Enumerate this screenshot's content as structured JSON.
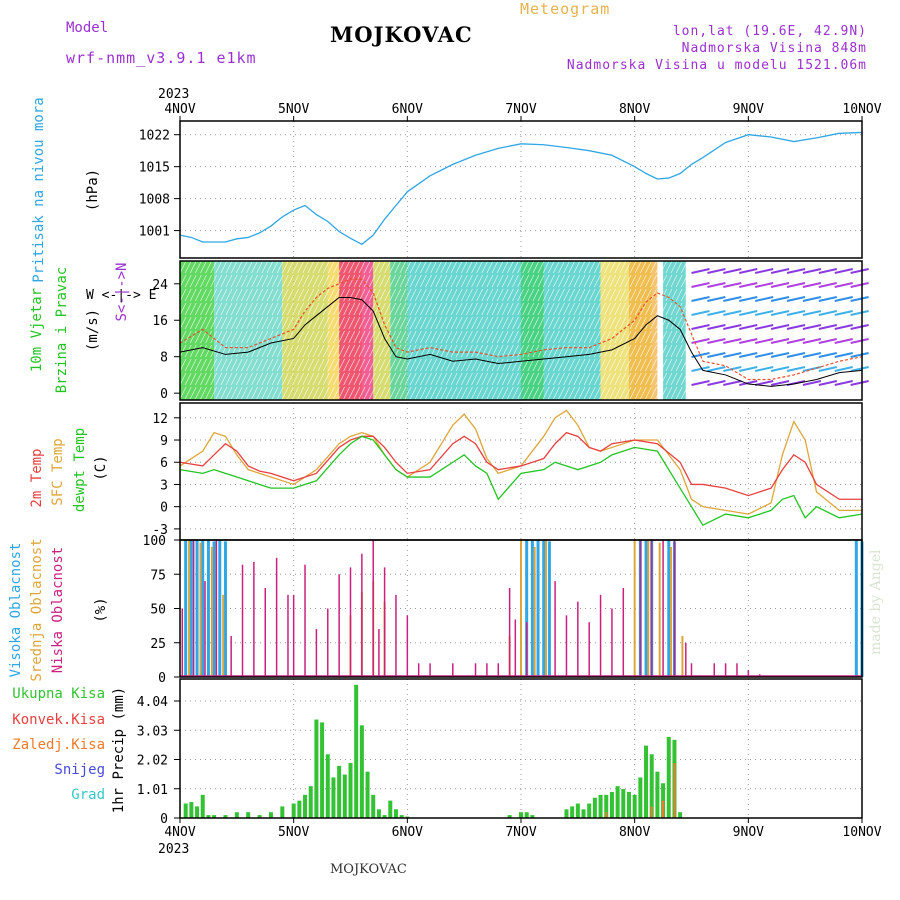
{
  "header": {
    "title": "MOJKOVAC",
    "model_label": "Model",
    "model_name": "wrf-nmm_v3.9.1 e1km",
    "meteogram": "Meteogram",
    "lonlat": "lon,lat (19.6E, 42.9N)",
    "visina": "Nadmorska Visina 848m",
    "visina_model": "Nadmorska Visina u modelu 1521.06m",
    "year": "2023",
    "footer": "MOJKOVAC",
    "made_by": "made by Angel"
  },
  "colors": {
    "pressure": "#2fa6e6",
    "wind_label": "#22c422",
    "temp2m": "#e84040",
    "sfc": "#dea63a",
    "dew": "#22c422",
    "visoka": "#2fa6e6",
    "srednja": "#dea63a",
    "niska": "#cc2080",
    "precip_total": "#33c233",
    "precip_konv": "#e84040",
    "precip_zaledj": "#f07a2a",
    "snijeg": "#4a4ad8",
    "grad": "#36c8c8",
    "violet": "#9b30d0"
  },
  "axis_labels": {
    "pressure": [
      "Pritisak na nivou mora",
      "(hPa)"
    ],
    "wind": [
      "10m Vjetar",
      "Brzina i Pravac",
      "(m/s)"
    ],
    "wind_compass": "W <-|-> E",
    "wind_compass2": "S<-|->N",
    "temp": [
      "2m Temp",
      "SFC Temp",
      "dewpt Temp",
      "(C)"
    ],
    "cloud": [
      "Visoka Oblacnost",
      "Srednja Oblacnost",
      "Niska Oblacnost",
      "(%)"
    ],
    "precip": [
      "Ukupna Kisa",
      "Konvek.Kisa",
      "Zaledj.Kisa",
      "Snijeg",
      "Grad",
      "1hr Precip (mm)"
    ]
  },
  "chart_data": [
    {
      "type": "line",
      "name": "pressure",
      "x_days": [
        "4NOV",
        "5NOV",
        "6NOV",
        "7NOV",
        "8NOV",
        "9NOV",
        "10NOV"
      ],
      "ylabel": "(hPa)",
      "yticks": [
        "1001",
        "1008",
        "1015",
        "1022"
      ],
      "ylim": [
        995,
        1025
      ],
      "x": [
        0,
        0.1,
        0.2,
        0.3,
        0.4,
        0.5,
        0.6,
        0.7,
        0.8,
        0.9,
        1.0,
        1.1,
        1.2,
        1.3,
        1.4,
        1.5,
        1.6,
        1.7,
        1.8,
        1.9,
        2.0,
        2.2,
        2.4,
        2.6,
        2.8,
        3.0,
        3.2,
        3.4,
        3.6,
        3.8,
        4.0,
        4.1,
        4.2,
        4.3,
        4.4,
        4.5,
        4.6,
        4.8,
        5.0,
        5.2,
        5.4,
        5.6,
        5.8,
        6.0
      ],
      "values": [
        1000,
        999.5,
        998.5,
        998.5,
        998.5,
        999.2,
        999.5,
        1000.5,
        1002,
        1004,
        1005.5,
        1006.5,
        1004.5,
        1003,
        1000.8,
        999.3,
        998,
        1000,
        1003.5,
        1006.5,
        1009.5,
        1013,
        1015.5,
        1017.5,
        1019,
        1020,
        1019.8,
        1019.2,
        1018.5,
        1017.5,
        1015,
        1013.5,
        1012.3,
        1012.5,
        1013.5,
        1015.5,
        1017,
        1020.3,
        1022,
        1021.5,
        1020.5,
        1021.3,
        1022.3,
        1022.5
      ]
    },
    {
      "type": "line",
      "name": "wind",
      "ylabel": "(m/s)",
      "yticks": [
        "0",
        "8",
        "16",
        "24"
      ],
      "ylim": [
        -1.5,
        29
      ],
      "x": [
        0,
        0.2,
        0.4,
        0.6,
        0.8,
        1.0,
        1.1,
        1.2,
        1.3,
        1.4,
        1.5,
        1.6,
        1.7,
        1.8,
        1.9,
        2.0,
        2.2,
        2.4,
        2.6,
        2.8,
        3.0,
        3.2,
        3.4,
        3.6,
        3.8,
        4.0,
        4.1,
        4.2,
        4.3,
        4.4,
        4.5,
        4.6,
        4.8,
        5.0,
        5.2,
        5.4,
        5.6,
        5.8,
        6.0
      ],
      "speed": [
        9,
        10,
        8.5,
        9,
        11,
        12,
        15,
        17,
        19,
        21,
        21,
        20.5,
        18,
        12,
        8,
        7.5,
        8.5,
        7,
        7.5,
        6.5,
        7,
        7.5,
        8,
        8.5,
        9.5,
        12,
        15,
        17,
        16,
        14,
        9,
        5,
        4,
        2,
        1.5,
        2,
        3,
        4.5,
        5
      ],
      "gust": [
        11,
        14,
        10,
        10,
        12,
        14,
        18,
        21,
        23,
        24,
        25,
        25,
        22,
        15,
        10,
        9,
        10,
        9,
        9,
        8,
        8.5,
        9.5,
        10,
        10,
        12,
        16,
        20,
        22,
        21,
        19,
        13,
        7,
        6,
        3,
        3,
        4,
        5.5,
        7,
        8
      ]
    },
    {
      "type": "line",
      "name": "temperature",
      "ylabel": "(C)",
      "yticks": [
        "-3",
        "0",
        "3",
        "6",
        "9",
        "12"
      ],
      "ylim": [
        -4.5,
        14
      ],
      "x": [
        0,
        0.2,
        0.3,
        0.4,
        0.5,
        0.6,
        0.7,
        0.8,
        1.0,
        1.2,
        1.4,
        1.5,
        1.6,
        1.7,
        1.8,
        1.9,
        2.0,
        2.2,
        2.4,
        2.5,
        2.6,
        2.7,
        2.8,
        3.0,
        3.2,
        3.3,
        3.4,
        3.5,
        3.6,
        3.7,
        3.8,
        4.0,
        4.2,
        4.4,
        4.5,
        4.6,
        4.8,
        5.0,
        5.2,
        5.3,
        5.4,
        5.5,
        5.6,
        5.8,
        6.0
      ],
      "series": [
        {
          "name": "2m Temp",
          "values": [
            6,
            5.5,
            7,
            8.5,
            7.5,
            5.5,
            4.8,
            4.5,
            3.5,
            4.5,
            8,
            9,
            9.5,
            9.5,
            8,
            6,
            4.5,
            5,
            8.5,
            9.5,
            8.5,
            6,
            5,
            5.5,
            6.5,
            8.5,
            10,
            9.5,
            8,
            7.5,
            8.5,
            9,
            8.5,
            6,
            3,
            3,
            2.5,
            1.5,
            2.5,
            5,
            7,
            6,
            3,
            1,
            1
          ]
        },
        {
          "name": "SFC Temp",
          "values": [
            5.5,
            7.5,
            10,
            9.5,
            7,
            5,
            4.5,
            4,
            3,
            5,
            8.5,
            9.5,
            10,
            9.5,
            7,
            5,
            4,
            6,
            11,
            12.5,
            10.5,
            6.5,
            4.5,
            5.5,
            9.5,
            12,
            13,
            11,
            8,
            7.5,
            8,
            9,
            9,
            5,
            1,
            0,
            -0.5,
            -1,
            0.5,
            7,
            11.5,
            9,
            2,
            -0.5,
            -0.5
          ]
        },
        {
          "name": "dewpt Temp",
          "values": [
            5,
            4.5,
            5,
            4.5,
            4,
            3.5,
            3,
            2.5,
            2.5,
            3.5,
            7,
            8.5,
            9.5,
            9,
            7,
            5,
            4,
            4,
            6,
            7,
            5.5,
            4.5,
            1,
            4.5,
            5,
            6,
            5.5,
            5,
            5.5,
            6,
            7,
            8,
            7.5,
            2.5,
            0,
            -2.5,
            -1,
            -1.5,
            -0.5,
            1,
            1.5,
            -1.5,
            0,
            -1.5,
            -1
          ]
        }
      ]
    },
    {
      "type": "bar",
      "name": "cloud",
      "ylabel": "(%)",
      "yticks": [
        "0",
        "25",
        "50",
        "75",
        "100"
      ],
      "ylim": [
        0,
        100
      ],
      "series": [
        {
          "name": "Visoka Oblacnost",
          "x": [
            0.05,
            0.1,
            0.15,
            0.2,
            0.25,
            0.3,
            0.35,
            0.4,
            3.05,
            3.1,
            3.15,
            3.2,
            3.25,
            4.05,
            4.1,
            4.15,
            4.3,
            4.35,
            5.95,
            6.0
          ],
          "values": [
            100,
            100,
            100,
            100,
            100,
            99,
            100,
            99,
            100,
            100,
            100,
            100,
            99,
            100,
            100,
            100,
            100,
            99,
            100,
            99
          ]
        },
        {
          "name": "Srednja Oblacnost",
          "x": [
            0.08,
            0.18,
            0.28,
            0.38,
            1.5,
            1.6,
            1.7,
            1.8,
            2.9,
            3.0,
            3.12,
            3.22,
            4.0,
            4.12,
            4.22,
            4.32,
            4.42
          ],
          "values": [
            100,
            98,
            95,
            60,
            45,
            62,
            70,
            55,
            30,
            100,
            95,
            100,
            100,
            100,
            98,
            95,
            30
          ]
        },
        {
          "name": "Niska Oblacnost",
          "x": [
            0.02,
            0.12,
            0.22,
            0.32,
            0.45,
            0.55,
            0.65,
            0.75,
            0.85,
            0.95,
            1.0,
            1.1,
            1.2,
            1.3,
            1.4,
            1.5,
            1.6,
            1.7,
            1.75,
            1.8,
            1.9,
            2.0,
            2.1,
            2.2,
            2.4,
            2.6,
            2.7,
            2.8,
            2.9,
            2.95,
            3.05,
            3.3,
            3.4,
            3.5,
            3.6,
            3.7,
            3.8,
            3.9,
            4.05,
            4.15,
            4.25,
            4.35,
            4.45,
            4.5,
            4.7,
            4.8,
            4.9,
            5.0,
            5.1
          ],
          "values": [
            50,
            100,
            70,
            100,
            30,
            82,
            84,
            65,
            87,
            60,
            60,
            82,
            35,
            50,
            75,
            80,
            90,
            100,
            35,
            80,
            60,
            45,
            10,
            10,
            10,
            10,
            10,
            10,
            65,
            42,
            40,
            70,
            45,
            55,
            40,
            60,
            50,
            65,
            100,
            100,
            100,
            100,
            25,
            10,
            10,
            10,
            10,
            5,
            2
          ]
        }
      ]
    },
    {
      "type": "bar",
      "name": "precip",
      "ylabel": "1hr Precip (mm)",
      "yticks": [
        "0",
        "1.01",
        "2.02",
        "3.03",
        "4.04"
      ],
      "ylim": [
        0,
        4.8
      ],
      "x": [
        0.05,
        0.1,
        0.15,
        0.2,
        0.25,
        0.3,
        0.4,
        0.5,
        0.6,
        0.7,
        0.8,
        0.9,
        1.0,
        1.05,
        1.1,
        1.15,
        1.2,
        1.25,
        1.3,
        1.35,
        1.4,
        1.45,
        1.5,
        1.55,
        1.6,
        1.65,
        1.7,
        1.75,
        1.8,
        1.85,
        1.9,
        1.95,
        2.0,
        2.9,
        3.0,
        3.05,
        3.1,
        3.4,
        3.45,
        3.5,
        3.55,
        3.6,
        3.65,
        3.7,
        3.75,
        3.8,
        3.85,
        3.9,
        3.95,
        4.0,
        4.05,
        4.1,
        4.15,
        4.2,
        4.25,
        4.3,
        4.35,
        4.4
      ],
      "values": [
        0.5,
        0.55,
        0.4,
        0.8,
        0.1,
        0.1,
        0.1,
        0.2,
        0.2,
        0.1,
        0.2,
        0.4,
        0.5,
        0.6,
        0.8,
        1.1,
        3.4,
        3.3,
        2.2,
        1.4,
        1.8,
        1.5,
        1.9,
        4.6,
        3.2,
        1.6,
        0.8,
        0.3,
        0.1,
        0.6,
        0.3,
        0.1,
        0.05,
        0.1,
        0.2,
        0.2,
        0.1,
        0.3,
        0.4,
        0.5,
        0.3,
        0.5,
        0.7,
        0.8,
        0.8,
        0.9,
        1.1,
        1.0,
        0.9,
        0.8,
        1.4,
        2.5,
        2.2,
        1.6,
        1.2,
        2.8,
        2.7,
        0.2
      ],
      "convective_x": [
        3.75,
        4.15,
        4.25,
        4.35
      ],
      "convective_values": [
        0.2,
        0.4,
        0.6,
        1.9
      ]
    }
  ]
}
